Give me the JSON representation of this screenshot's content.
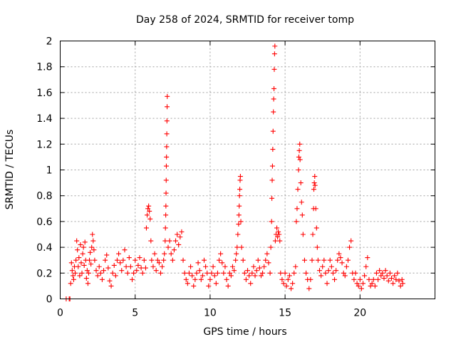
{
  "chart_data": {
    "type": "scatter",
    "title": "Day 258 of 2024, SRMTID for receiver tomp",
    "xlabel": "GPS time / hours",
    "ylabel": "SRMTID / TECUs",
    "xlim": [
      0,
      25
    ],
    "ylim": [
      0,
      2
    ],
    "xticks": [
      0,
      5,
      10,
      15,
      20
    ],
    "xtick_labels": [
      "0",
      "5",
      "10",
      "15",
      "20"
    ],
    "yticks": [
      0,
      0.2,
      0.4,
      0.6,
      0.8,
      1,
      1.2,
      1.4,
      1.6,
      1.8,
      2
    ],
    "ytick_labels": [
      "0",
      "0.2",
      "0.4",
      "0.6",
      "0.8",
      "1",
      "1.2",
      "1.4",
      "1.6",
      "1.8",
      "2"
    ],
    "grid": true,
    "marker": "+",
    "color": "#ff0000",
    "series": [
      {
        "name": "SRMTID",
        "points": [
          [
            0.4,
            0.0
          ],
          [
            0.6,
            0.0
          ],
          [
            0.65,
            0.0
          ],
          [
            0.7,
            0.12
          ],
          [
            0.75,
            0.28
          ],
          [
            0.8,
            0.22
          ],
          [
            0.85,
            0.18
          ],
          [
            0.9,
            0.15
          ],
          [
            0.95,
            0.25
          ],
          [
            1.0,
            0.2
          ],
          [
            1.05,
            0.3
          ],
          [
            1.1,
            0.45
          ],
          [
            1.15,
            0.38
          ],
          [
            1.2,
            0.25
          ],
          [
            1.25,
            0.32
          ],
          [
            1.3,
            0.18
          ],
          [
            1.35,
            0.42
          ],
          [
            1.4,
            0.28
          ],
          [
            1.45,
            0.2
          ],
          [
            1.5,
            0.35
          ],
          [
            1.55,
            0.4
          ],
          [
            1.6,
            0.26
          ],
          [
            1.65,
            0.44
          ],
          [
            1.7,
            0.3
          ],
          [
            1.75,
            0.16
          ],
          [
            1.8,
            0.22
          ],
          [
            1.85,
            0.12
          ],
          [
            1.9,
            0.2
          ],
          [
            1.95,
            0.3
          ],
          [
            2.0,
            0.36
          ],
          [
            2.05,
            0.27
          ],
          [
            2.1,
            0.4
          ],
          [
            2.15,
            0.5
          ],
          [
            2.2,
            0.45
          ],
          [
            2.25,
            0.38
          ],
          [
            2.3,
            0.3
          ],
          [
            2.4,
            0.22
          ],
          [
            2.5,
            0.18
          ],
          [
            2.6,
            0.25
          ],
          [
            2.7,
            0.2
          ],
          [
            2.8,
            0.15
          ],
          [
            2.9,
            0.22
          ],
          [
            3.0,
            0.3
          ],
          [
            3.1,
            0.34
          ],
          [
            3.2,
            0.24
          ],
          [
            3.3,
            0.14
          ],
          [
            3.4,
            0.1
          ],
          [
            3.5,
            0.2
          ],
          [
            3.6,
            0.26
          ],
          [
            3.7,
            0.18
          ],
          [
            3.8,
            0.3
          ],
          [
            3.9,
            0.35
          ],
          [
            4.0,
            0.28
          ],
          [
            4.1,
            0.22
          ],
          [
            4.2,
            0.3
          ],
          [
            4.3,
            0.38
          ],
          [
            4.4,
            0.25
          ],
          [
            4.5,
            0.2
          ],
          [
            4.6,
            0.32
          ],
          [
            4.7,
            0.25
          ],
          [
            4.8,
            0.15
          ],
          [
            4.9,
            0.2
          ],
          [
            5.0,
            0.3
          ],
          [
            5.1,
            0.22
          ],
          [
            5.2,
            0.26
          ],
          [
            5.3,
            0.32
          ],
          [
            5.4,
            0.24
          ],
          [
            5.5,
            0.2
          ],
          [
            5.6,
            0.3
          ],
          [
            5.7,
            0.24
          ],
          [
            5.75,
            0.55
          ],
          [
            5.8,
            0.65
          ],
          [
            5.85,
            0.7
          ],
          [
            5.9,
            0.72
          ],
          [
            5.95,
            0.68
          ],
          [
            6.0,
            0.62
          ],
          [
            6.05,
            0.45
          ],
          [
            6.1,
            0.3
          ],
          [
            6.2,
            0.25
          ],
          [
            6.3,
            0.35
          ],
          [
            6.4,
            0.22
          ],
          [
            6.5,
            0.3
          ],
          [
            6.6,
            0.28
          ],
          [
            6.7,
            0.2
          ],
          [
            6.8,
            0.25
          ],
          [
            6.9,
            0.3
          ],
          [
            6.95,
            0.35
          ],
          [
            7.0,
            0.45
          ],
          [
            7.02,
            0.55
          ],
          [
            7.04,
            0.65
          ],
          [
            7.05,
            0.72
          ],
          [
            7.06,
            0.82
          ],
          [
            7.07,
            0.92
          ],
          [
            7.08,
            1.03
          ],
          [
            7.09,
            1.1
          ],
          [
            7.1,
            1.18
          ],
          [
            7.11,
            1.28
          ],
          [
            7.12,
            1.38
          ],
          [
            7.13,
            1.49
          ],
          [
            7.14,
            1.57
          ],
          [
            7.2,
            0.4
          ],
          [
            7.3,
            0.45
          ],
          [
            7.4,
            0.35
          ],
          [
            7.5,
            0.3
          ],
          [
            7.6,
            0.38
          ],
          [
            7.7,
            0.45
          ],
          [
            7.8,
            0.5
          ],
          [
            7.9,
            0.42
          ],
          [
            8.0,
            0.48
          ],
          [
            8.1,
            0.52
          ],
          [
            8.2,
            0.3
          ],
          [
            8.3,
            0.2
          ],
          [
            8.4,
            0.15
          ],
          [
            8.5,
            0.12
          ],
          [
            8.6,
            0.2
          ],
          [
            8.7,
            0.25
          ],
          [
            8.8,
            0.18
          ],
          [
            8.9,
            0.1
          ],
          [
            9.0,
            0.15
          ],
          [
            9.1,
            0.2
          ],
          [
            9.2,
            0.28
          ],
          [
            9.3,
            0.22
          ],
          [
            9.4,
            0.15
          ],
          [
            9.5,
            0.18
          ],
          [
            9.6,
            0.3
          ],
          [
            9.7,
            0.25
          ],
          [
            9.8,
            0.2
          ],
          [
            9.9,
            0.1
          ],
          [
            10.0,
            0.15
          ],
          [
            10.1,
            0.2
          ],
          [
            10.2,
            0.25
          ],
          [
            10.3,
            0.18
          ],
          [
            10.4,
            0.12
          ],
          [
            10.5,
            0.2
          ],
          [
            10.6,
            0.3
          ],
          [
            10.7,
            0.35
          ],
          [
            10.8,
            0.28
          ],
          [
            10.9,
            0.2
          ],
          [
            11.0,
            0.25
          ],
          [
            11.1,
            0.15
          ],
          [
            11.2,
            0.1
          ],
          [
            11.3,
            0.2
          ],
          [
            11.4,
            0.18
          ],
          [
            11.5,
            0.25
          ],
          [
            11.6,
            0.22
          ],
          [
            11.7,
            0.3
          ],
          [
            11.75,
            0.35
          ],
          [
            11.8,
            0.4
          ],
          [
            11.85,
            0.5
          ],
          [
            11.9,
            0.58
          ],
          [
            11.92,
            0.65
          ],
          [
            11.94,
            0.72
          ],
          [
            11.96,
            0.8
          ],
          [
            11.98,
            0.85
          ],
          [
            12.0,
            0.92
          ],
          [
            12.02,
            0.95
          ],
          [
            12.05,
            0.6
          ],
          [
            12.1,
            0.4
          ],
          [
            12.2,
            0.3
          ],
          [
            12.3,
            0.2
          ],
          [
            12.4,
            0.15
          ],
          [
            12.5,
            0.22
          ],
          [
            12.6,
            0.18
          ],
          [
            12.7,
            0.12
          ],
          [
            12.8,
            0.2
          ],
          [
            12.9,
            0.25
          ],
          [
            13.0,
            0.18
          ],
          [
            13.1,
            0.22
          ],
          [
            13.2,
            0.3
          ],
          [
            13.3,
            0.24
          ],
          [
            13.4,
            0.18
          ],
          [
            13.5,
            0.2
          ],
          [
            13.6,
            0.25
          ],
          [
            13.7,
            0.3
          ],
          [
            13.8,
            0.35
          ],
          [
            13.9,
            0.28
          ],
          [
            14.0,
            0.2
          ],
          [
            14.05,
            0.4
          ],
          [
            14.1,
            0.6
          ],
          [
            14.12,
            0.78
          ],
          [
            14.14,
            0.92
          ],
          [
            14.16,
            1.03
          ],
          [
            14.18,
            1.16
          ],
          [
            14.2,
            1.3
          ],
          [
            14.22,
            1.45
          ],
          [
            14.24,
            1.55
          ],
          [
            14.26,
            1.63
          ],
          [
            14.28,
            1.78
          ],
          [
            14.3,
            1.9
          ],
          [
            14.32,
            1.96
          ],
          [
            14.35,
            0.45
          ],
          [
            14.4,
            0.5
          ],
          [
            14.45,
            0.55
          ],
          [
            14.5,
            0.48
          ],
          [
            14.55,
            0.52
          ],
          [
            14.6,
            0.5
          ],
          [
            14.65,
            0.45
          ],
          [
            14.7,
            0.2
          ],
          [
            14.8,
            0.15
          ],
          [
            14.9,
            0.12
          ],
          [
            15.0,
            0.2
          ],
          [
            15.1,
            0.1
          ],
          [
            15.2,
            0.15
          ],
          [
            15.3,
            0.18
          ],
          [
            15.4,
            0.08
          ],
          [
            15.5,
            0.12
          ],
          [
            15.6,
            0.2
          ],
          [
            15.7,
            0.25
          ],
          [
            15.75,
            0.6
          ],
          [
            15.8,
            0.7
          ],
          [
            15.85,
            0.85
          ],
          [
            15.9,
            1.0
          ],
          [
            15.92,
            1.1
          ],
          [
            15.95,
            1.15
          ],
          [
            15.98,
            1.2
          ],
          [
            16.0,
            1.08
          ],
          [
            16.05,
            0.9
          ],
          [
            16.1,
            0.75
          ],
          [
            16.15,
            0.65
          ],
          [
            16.2,
            0.5
          ],
          [
            16.3,
            0.3
          ],
          [
            16.4,
            0.2
          ],
          [
            16.5,
            0.15
          ],
          [
            16.6,
            0.08
          ],
          [
            16.7,
            0.15
          ],
          [
            16.8,
            0.3
          ],
          [
            16.85,
            0.5
          ],
          [
            16.9,
            0.7
          ],
          [
            16.92,
            0.85
          ],
          [
            16.95,
            0.9
          ],
          [
            16.98,
            0.95
          ],
          [
            17.0,
            0.88
          ],
          [
            17.05,
            0.7
          ],
          [
            17.1,
            0.55
          ],
          [
            17.15,
            0.4
          ],
          [
            17.2,
            0.3
          ],
          [
            17.3,
            0.22
          ],
          [
            17.4,
            0.18
          ],
          [
            17.5,
            0.25
          ],
          [
            17.6,
            0.3
          ],
          [
            17.7,
            0.2
          ],
          [
            17.8,
            0.12
          ],
          [
            17.9,
            0.22
          ],
          [
            18.0,
            0.3
          ],
          [
            18.1,
            0.25
          ],
          [
            18.2,
            0.2
          ],
          [
            18.3,
            0.15
          ],
          [
            18.4,
            0.22
          ],
          [
            18.5,
            0.3
          ],
          [
            18.6,
            0.35
          ],
          [
            18.7,
            0.32
          ],
          [
            18.8,
            0.28
          ],
          [
            18.9,
            0.2
          ],
          [
            19.0,
            0.18
          ],
          [
            19.1,
            0.25
          ],
          [
            19.2,
            0.3
          ],
          [
            19.3,
            0.4
          ],
          [
            19.4,
            0.45
          ],
          [
            19.5,
            0.2
          ],
          [
            19.6,
            0.15
          ],
          [
            19.7,
            0.2
          ],
          [
            19.8,
            0.12
          ],
          [
            19.9,
            0.1
          ],
          [
            20.0,
            0.15
          ],
          [
            20.1,
            0.08
          ],
          [
            20.2,
            0.12
          ],
          [
            20.3,
            0.18
          ],
          [
            20.4,
            0.25
          ],
          [
            20.5,
            0.32
          ],
          [
            20.6,
            0.15
          ],
          [
            20.7,
            0.1
          ],
          [
            20.8,
            0.12
          ],
          [
            20.9,
            0.15
          ],
          [
            21.0,
            0.1
          ],
          [
            21.1,
            0.2
          ],
          [
            21.2,
            0.15
          ],
          [
            21.3,
            0.22
          ],
          [
            21.4,
            0.18
          ],
          [
            21.5,
            0.2
          ],
          [
            21.6,
            0.16
          ],
          [
            21.7,
            0.22
          ],
          [
            21.8,
            0.18
          ],
          [
            21.9,
            0.14
          ],
          [
            22.0,
            0.2
          ],
          [
            22.1,
            0.16
          ],
          [
            22.2,
            0.12
          ],
          [
            22.3,
            0.18
          ],
          [
            22.4,
            0.15
          ],
          [
            22.5,
            0.2
          ],
          [
            22.6,
            0.14
          ],
          [
            22.7,
            0.1
          ],
          [
            22.8,
            0.15
          ],
          [
            22.85,
            0.12
          ]
        ]
      }
    ]
  }
}
